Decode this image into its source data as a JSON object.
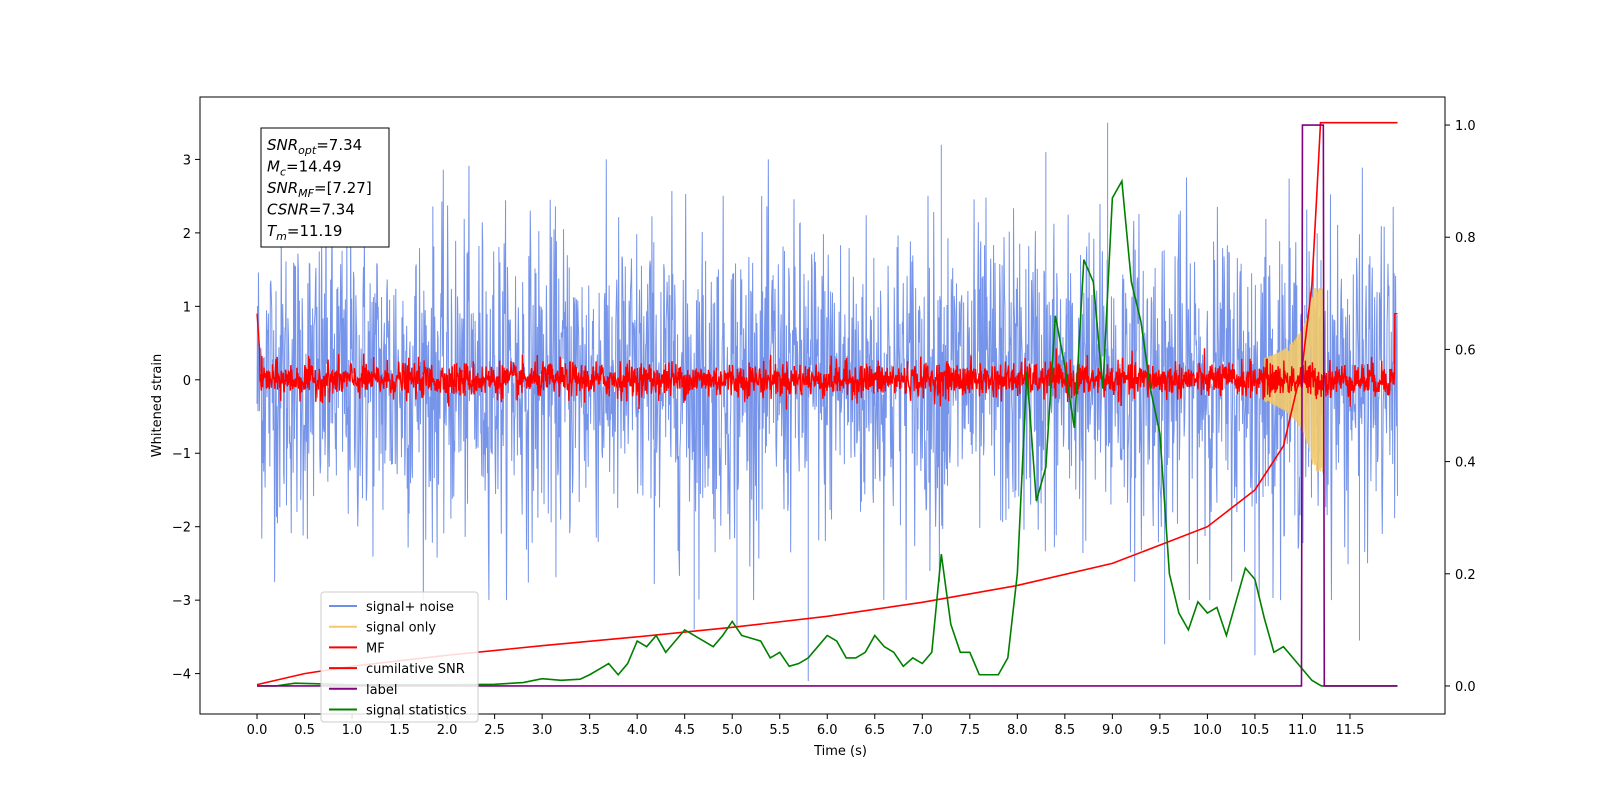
{
  "chart_data": {
    "type": "line",
    "title": "",
    "xlabel": "Time (s)",
    "ylabel": "Whitened strain",
    "xlim": [
      -0.6,
      12.5
    ],
    "ylim": [
      -4.55,
      3.85
    ],
    "y2lim": [
      -0.05,
      1.05
    ],
    "x_ticks": [
      0.0,
      0.5,
      1.0,
      1.5,
      2.0,
      2.5,
      3.0,
      3.5,
      4.0,
      4.5,
      5.0,
      5.5,
      6.0,
      6.5,
      7.0,
      7.5,
      8.0,
      8.5,
      9.0,
      9.5,
      10.0,
      10.5,
      11.0,
      11.5
    ],
    "x_tick_labels": [
      "0.0",
      "0.5",
      "1.0",
      "1.5",
      "2.0",
      "2.5",
      "3.0",
      "3.5",
      "4.0",
      "4.5",
      "5.0",
      "5.5",
      "6.0",
      "6.5",
      "7.0",
      "7.5",
      "8.0",
      "8.5",
      "9.0",
      "9.5",
      "10.0",
      "10.5",
      "11.0",
      "11.5"
    ],
    "y_ticks": [
      -4,
      -3,
      -2,
      -1,
      0,
      1,
      2,
      3
    ],
    "y_tick_labels": [
      "−4",
      "−3",
      "−2",
      "−1",
      "0",
      "1",
      "2",
      "3"
    ],
    "y2_ticks": [
      0.0,
      0.2,
      0.4,
      0.6,
      0.8,
      1.0
    ],
    "y2_tick_labels": [
      "0.0",
      "0.2",
      "0.4",
      "0.6",
      "0.8",
      "1.0"
    ],
    "noise_span": [
      0.0,
      12.0
    ],
    "noise_spikes": [
      {
        "x": 4.6,
        "y": -3.4
      },
      {
        "x": 5.05,
        "y": -3.35
      },
      {
        "x": 5.8,
        "y": -4.1
      },
      {
        "x": 7.2,
        "y": 3.2
      },
      {
        "x": 8.3,
        "y": 3.1
      },
      {
        "x": 8.95,
        "y": 3.5
      },
      {
        "x": 9.55,
        "y": -3.6
      },
      {
        "x": 10.5,
        "y": -3.75
      },
      {
        "x": 11.6,
        "y": -3.55
      }
    ],
    "annotations": [
      {
        "name": "SNR",
        "sub": "opt",
        "value": "=7.34"
      },
      {
        "name": "M",
        "sub": "c",
        "value": "=14.49"
      },
      {
        "name": "SNR",
        "sub": "MF",
        "value": "=[7.27]"
      },
      {
        "name": "CSNR",
        "sub": "",
        "value": "=7.34"
      },
      {
        "name": "T",
        "sub": "m",
        "value": "=11.19"
      }
    ],
    "series": [
      {
        "name": "signal+ noise",
        "color": "#6f8ee8",
        "axis": "left"
      },
      {
        "name": "signal only",
        "color": "#f2c96b",
        "axis": "left"
      },
      {
        "name": "MF",
        "color": "#ff0000",
        "axis": "left"
      },
      {
        "name": "cumilative SNR",
        "color": "#ff0000",
        "axis": "left",
        "x": [
          0.0,
          0.5,
          1.0,
          2.0,
          3.0,
          4.0,
          5.0,
          6.0,
          7.0,
          8.0,
          9.0,
          10.0,
          10.5,
          10.8,
          11.0,
          11.1,
          11.15,
          11.19,
          11.3,
          12.0
        ],
        "y": [
          -4.15,
          -4.0,
          -3.9,
          -3.75,
          -3.62,
          -3.5,
          -3.37,
          -3.22,
          -3.03,
          -2.8,
          -2.5,
          -2.0,
          -1.5,
          -0.9,
          0.2,
          1.3,
          2.5,
          3.5,
          3.5,
          3.5
        ]
      },
      {
        "name": "label",
        "color": "#800080",
        "axis": "right",
        "x": [
          0.0,
          10.99,
          11.0,
          11.22,
          11.23,
          12.0
        ],
        "y": [
          0.0,
          0.0,
          1.0,
          1.0,
          0.0,
          0.0
        ]
      },
      {
        "name": "signal statistics",
        "color": "#008000",
        "axis": "right",
        "x": [
          0.0,
          0.2,
          0.4,
          0.6,
          0.8,
          1.0,
          1.5,
          2.0,
          2.5,
          2.8,
          3.0,
          3.2,
          3.4,
          3.5,
          3.6,
          3.7,
          3.8,
          3.9,
          4.0,
          4.1,
          4.2,
          4.3,
          4.4,
          4.5,
          4.6,
          4.7,
          4.8,
          4.9,
          5.0,
          5.1,
          5.2,
          5.3,
          5.4,
          5.5,
          5.6,
          5.7,
          5.8,
          5.9,
          6.0,
          6.1,
          6.2,
          6.3,
          6.4,
          6.5,
          6.6,
          6.7,
          6.8,
          6.9,
          7.0,
          7.1,
          7.2,
          7.3,
          7.4,
          7.5,
          7.6,
          7.7,
          7.8,
          7.9,
          8.0,
          8.1,
          8.2,
          8.3,
          8.4,
          8.5,
          8.6,
          8.7,
          8.8,
          8.9,
          9.0,
          9.1,
          9.2,
          9.3,
          9.4,
          9.5,
          9.6,
          9.7,
          9.8,
          9.9,
          10.0,
          10.1,
          10.2,
          10.3,
          10.4,
          10.5,
          10.6,
          10.7,
          10.8,
          10.9,
          11.0,
          11.1,
          11.2,
          11.3,
          11.5,
          11.8,
          12.0
        ],
        "y": [
          0.0,
          0.0,
          0.005,
          0.004,
          0.003,
          0.002,
          0.002,
          0.002,
          0.003,
          0.006,
          0.013,
          0.01,
          0.012,
          0.02,
          0.03,
          0.04,
          0.02,
          0.04,
          0.08,
          0.07,
          0.09,
          0.06,
          0.08,
          0.1,
          0.09,
          0.08,
          0.07,
          0.09,
          0.115,
          0.09,
          0.085,
          0.08,
          0.05,
          0.06,
          0.035,
          0.04,
          0.05,
          0.07,
          0.09,
          0.08,
          0.05,
          0.05,
          0.06,
          0.09,
          0.07,
          0.06,
          0.035,
          0.05,
          0.04,
          0.06,
          0.235,
          0.11,
          0.06,
          0.06,
          0.02,
          0.02,
          0.02,
          0.05,
          0.2,
          0.56,
          0.33,
          0.39,
          0.66,
          0.57,
          0.46,
          0.76,
          0.72,
          0.53,
          0.87,
          0.9,
          0.72,
          0.65,
          0.53,
          0.45,
          0.2,
          0.13,
          0.1,
          0.15,
          0.13,
          0.14,
          0.09,
          0.15,
          0.21,
          0.19,
          0.12,
          0.06,
          0.07,
          0.05,
          0.03,
          0.01,
          0.0,
          0.0,
          0.0,
          0.0,
          0.0
        ]
      }
    ],
    "legend_position": "lower-left",
    "grid": false
  }
}
